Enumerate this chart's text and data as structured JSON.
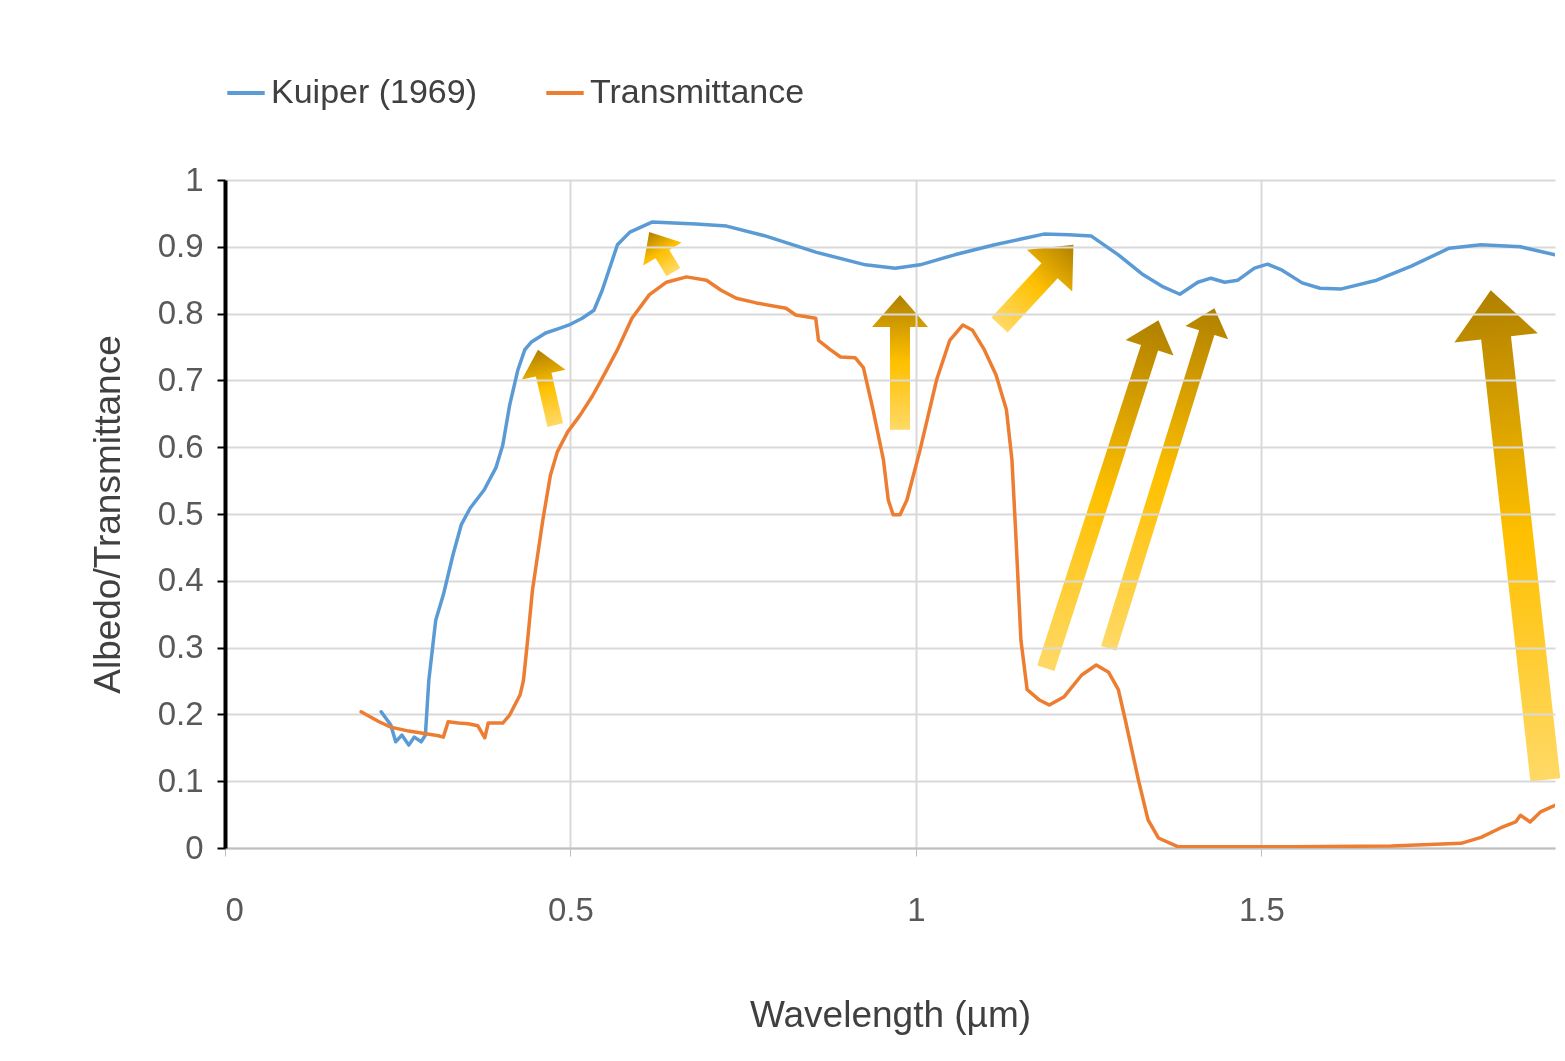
{
  "chart_data": {
    "type": "line",
    "xlabel": "Wavelength (µm)",
    "ylabel": "Albedo/Transmittance",
    "xlim": [
      0,
      1.925
    ],
    "xticks": [
      0,
      0.5,
      1,
      1.5
    ],
    "ylim": [
      0,
      1
    ],
    "yticks": [
      0,
      0.1,
      0.2,
      0.3,
      0.4,
      0.5,
      0.6,
      0.7,
      0.8,
      0.9,
      1
    ],
    "grid": true,
    "legend": "top",
    "marker": "none",
    "line_style": "solid",
    "series": [
      {
        "name": "Kuiper (1969)",
        "color": "#5b9bd5",
        "x": [
          0.226,
          0.24,
          0.247,
          0.256,
          0.266,
          0.274,
          0.284,
          0.29,
          0.295,
          0.305,
          0.316,
          0.33,
          0.342,
          0.355,
          0.375,
          0.392,
          0.402,
          0.412,
          0.424,
          0.434,
          0.443,
          0.464,
          0.484,
          0.5,
          0.517,
          0.534,
          0.546,
          0.568,
          0.586,
          0.618,
          0.682,
          0.726,
          0.783,
          0.855,
          0.927,
          0.97,
          1.006,
          1.056,
          1.114,
          1.185,
          1.221,
          1.254,
          1.293,
          1.329,
          1.358,
          1.382,
          1.408,
          1.427,
          1.447,
          1.466,
          1.49,
          1.509,
          1.53,
          1.559,
          1.585,
          1.616,
          1.667,
          1.717,
          1.772,
          1.818,
          1.875,
          1.925
        ],
        "values": [
          0.204,
          0.184,
          0.159,
          0.169,
          0.154,
          0.166,
          0.159,
          0.169,
          0.251,
          0.341,
          0.379,
          0.439,
          0.484,
          0.509,
          0.536,
          0.569,
          0.603,
          0.663,
          0.716,
          0.746,
          0.757,
          0.771,
          0.778,
          0.784,
          0.793,
          0.805,
          0.835,
          0.903,
          0.922,
          0.937,
          0.934,
          0.931,
          0.916,
          0.892,
          0.873,
          0.868,
          0.873,
          0.888,
          0.903,
          0.919,
          0.918,
          0.916,
          0.888,
          0.858,
          0.84,
          0.829,
          0.847,
          0.853,
          0.847,
          0.85,
          0.868,
          0.874,
          0.865,
          0.846,
          0.838,
          0.837,
          0.85,
          0.871,
          0.898,
          0.903,
          0.9,
          0.888
        ]
      },
      {
        "name": "Transmittance",
        "color": "#ed7d31",
        "x": [
          0.197,
          0.223,
          0.24,
          0.266,
          0.309,
          0.316,
          0.323,
          0.338,
          0.352,
          0.366,
          0.376,
          0.381,
          0.402,
          0.412,
          0.427,
          0.432,
          0.438,
          0.445,
          0.46,
          0.471,
          0.481,
          0.496,
          0.514,
          0.532,
          0.55,
          0.568,
          0.589,
          0.614,
          0.639,
          0.668,
          0.697,
          0.718,
          0.74,
          0.769,
          0.812,
          0.826,
          0.855,
          0.859,
          0.876,
          0.891,
          0.912,
          0.924,
          0.938,
          0.953,
          0.96,
          0.967,
          0.977,
          0.987,
          1.006,
          1.03,
          1.049,
          1.068,
          1.082,
          1.099,
          1.116,
          1.131,
          1.139,
          1.145,
          1.152,
          1.161,
          1.178,
          1.193,
          1.214,
          1.24,
          1.261,
          1.279,
          1.293,
          1.303,
          1.322,
          1.336,
          1.351,
          1.379,
          1.545,
          1.688,
          1.789,
          1.818,
          1.846,
          1.868,
          1.875,
          1.889,
          1.904,
          1.925
        ],
        "values": [
          0.204,
          0.189,
          0.181,
          0.175,
          0.168,
          0.166,
          0.189,
          0.187,
          0.186,
          0.183,
          0.165,
          0.187,
          0.187,
          0.199,
          0.229,
          0.251,
          0.311,
          0.386,
          0.491,
          0.558,
          0.593,
          0.623,
          0.648,
          0.677,
          0.711,
          0.746,
          0.793,
          0.828,
          0.847,
          0.855,
          0.85,
          0.835,
          0.823,
          0.816,
          0.808,
          0.798,
          0.793,
          0.76,
          0.746,
          0.735,
          0.734,
          0.719,
          0.656,
          0.581,
          0.521,
          0.499,
          0.499,
          0.521,
          0.596,
          0.701,
          0.76,
          0.783,
          0.775,
          0.746,
          0.708,
          0.656,
          0.581,
          0.461,
          0.311,
          0.237,
          0.222,
          0.214,
          0.226,
          0.259,
          0.274,
          0.263,
          0.237,
          0.192,
          0.102,
          0.042,
          0.015,
          0.002,
          0.002,
          0.003,
          0.007,
          0.016,
          0.03,
          0.039,
          0.049,
          0.039,
          0.054,
          0.064
        ]
      }
    ]
  }
}
